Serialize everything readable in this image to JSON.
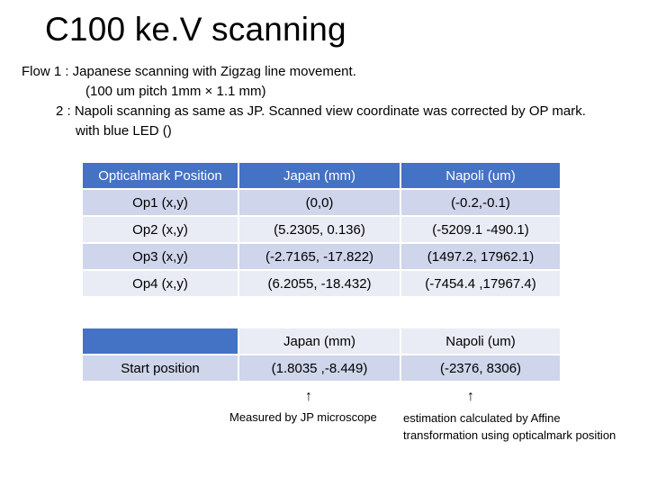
{
  "title": "C100 ke.V scanning",
  "flow": {
    "line1": "Flow 1 : Japanese scanning with Zigzag line movement.",
    "line2": "(100 um pitch  1mm × 1.1 mm)",
    "line3": "2 : Napoli scanning as same as JP. Scanned view coordinate was corrected by OP mark.",
    "line4": "with blue LED ()"
  },
  "table1": {
    "headers": [
      "Opticalmark Position",
      "Japan (mm)",
      "Napoli (um)"
    ],
    "rows": [
      [
        "Op1 (x,y)",
        "(0,0)",
        "(-0.2,-0.1)"
      ],
      [
        "Op2 (x,y)",
        "(5.2305, 0.136)",
        "(-5209.1 -490.1)"
      ],
      [
        "Op3 (x,y)",
        "(-2.7165, -17.822)",
        "(1497.2, 17962.1)"
      ],
      [
        "Op4 (x,y)",
        "(6.2055, -18.432)",
        "(-7454.4 ,17967.4)"
      ]
    ]
  },
  "table2": {
    "headers": [
      "",
      "Japan (mm)",
      "Napoli (um)"
    ],
    "rows": [
      [
        "Start position",
        "(1.8035 ,-8.449)",
        "(-2376, 8306)"
      ]
    ]
  },
  "notes": {
    "arrow": "↑",
    "jp": "Measured by JP microscope",
    "napoli_line1": "estimation calculated by Affine",
    "napoli_line2": "transformation using opticalmark position"
  }
}
